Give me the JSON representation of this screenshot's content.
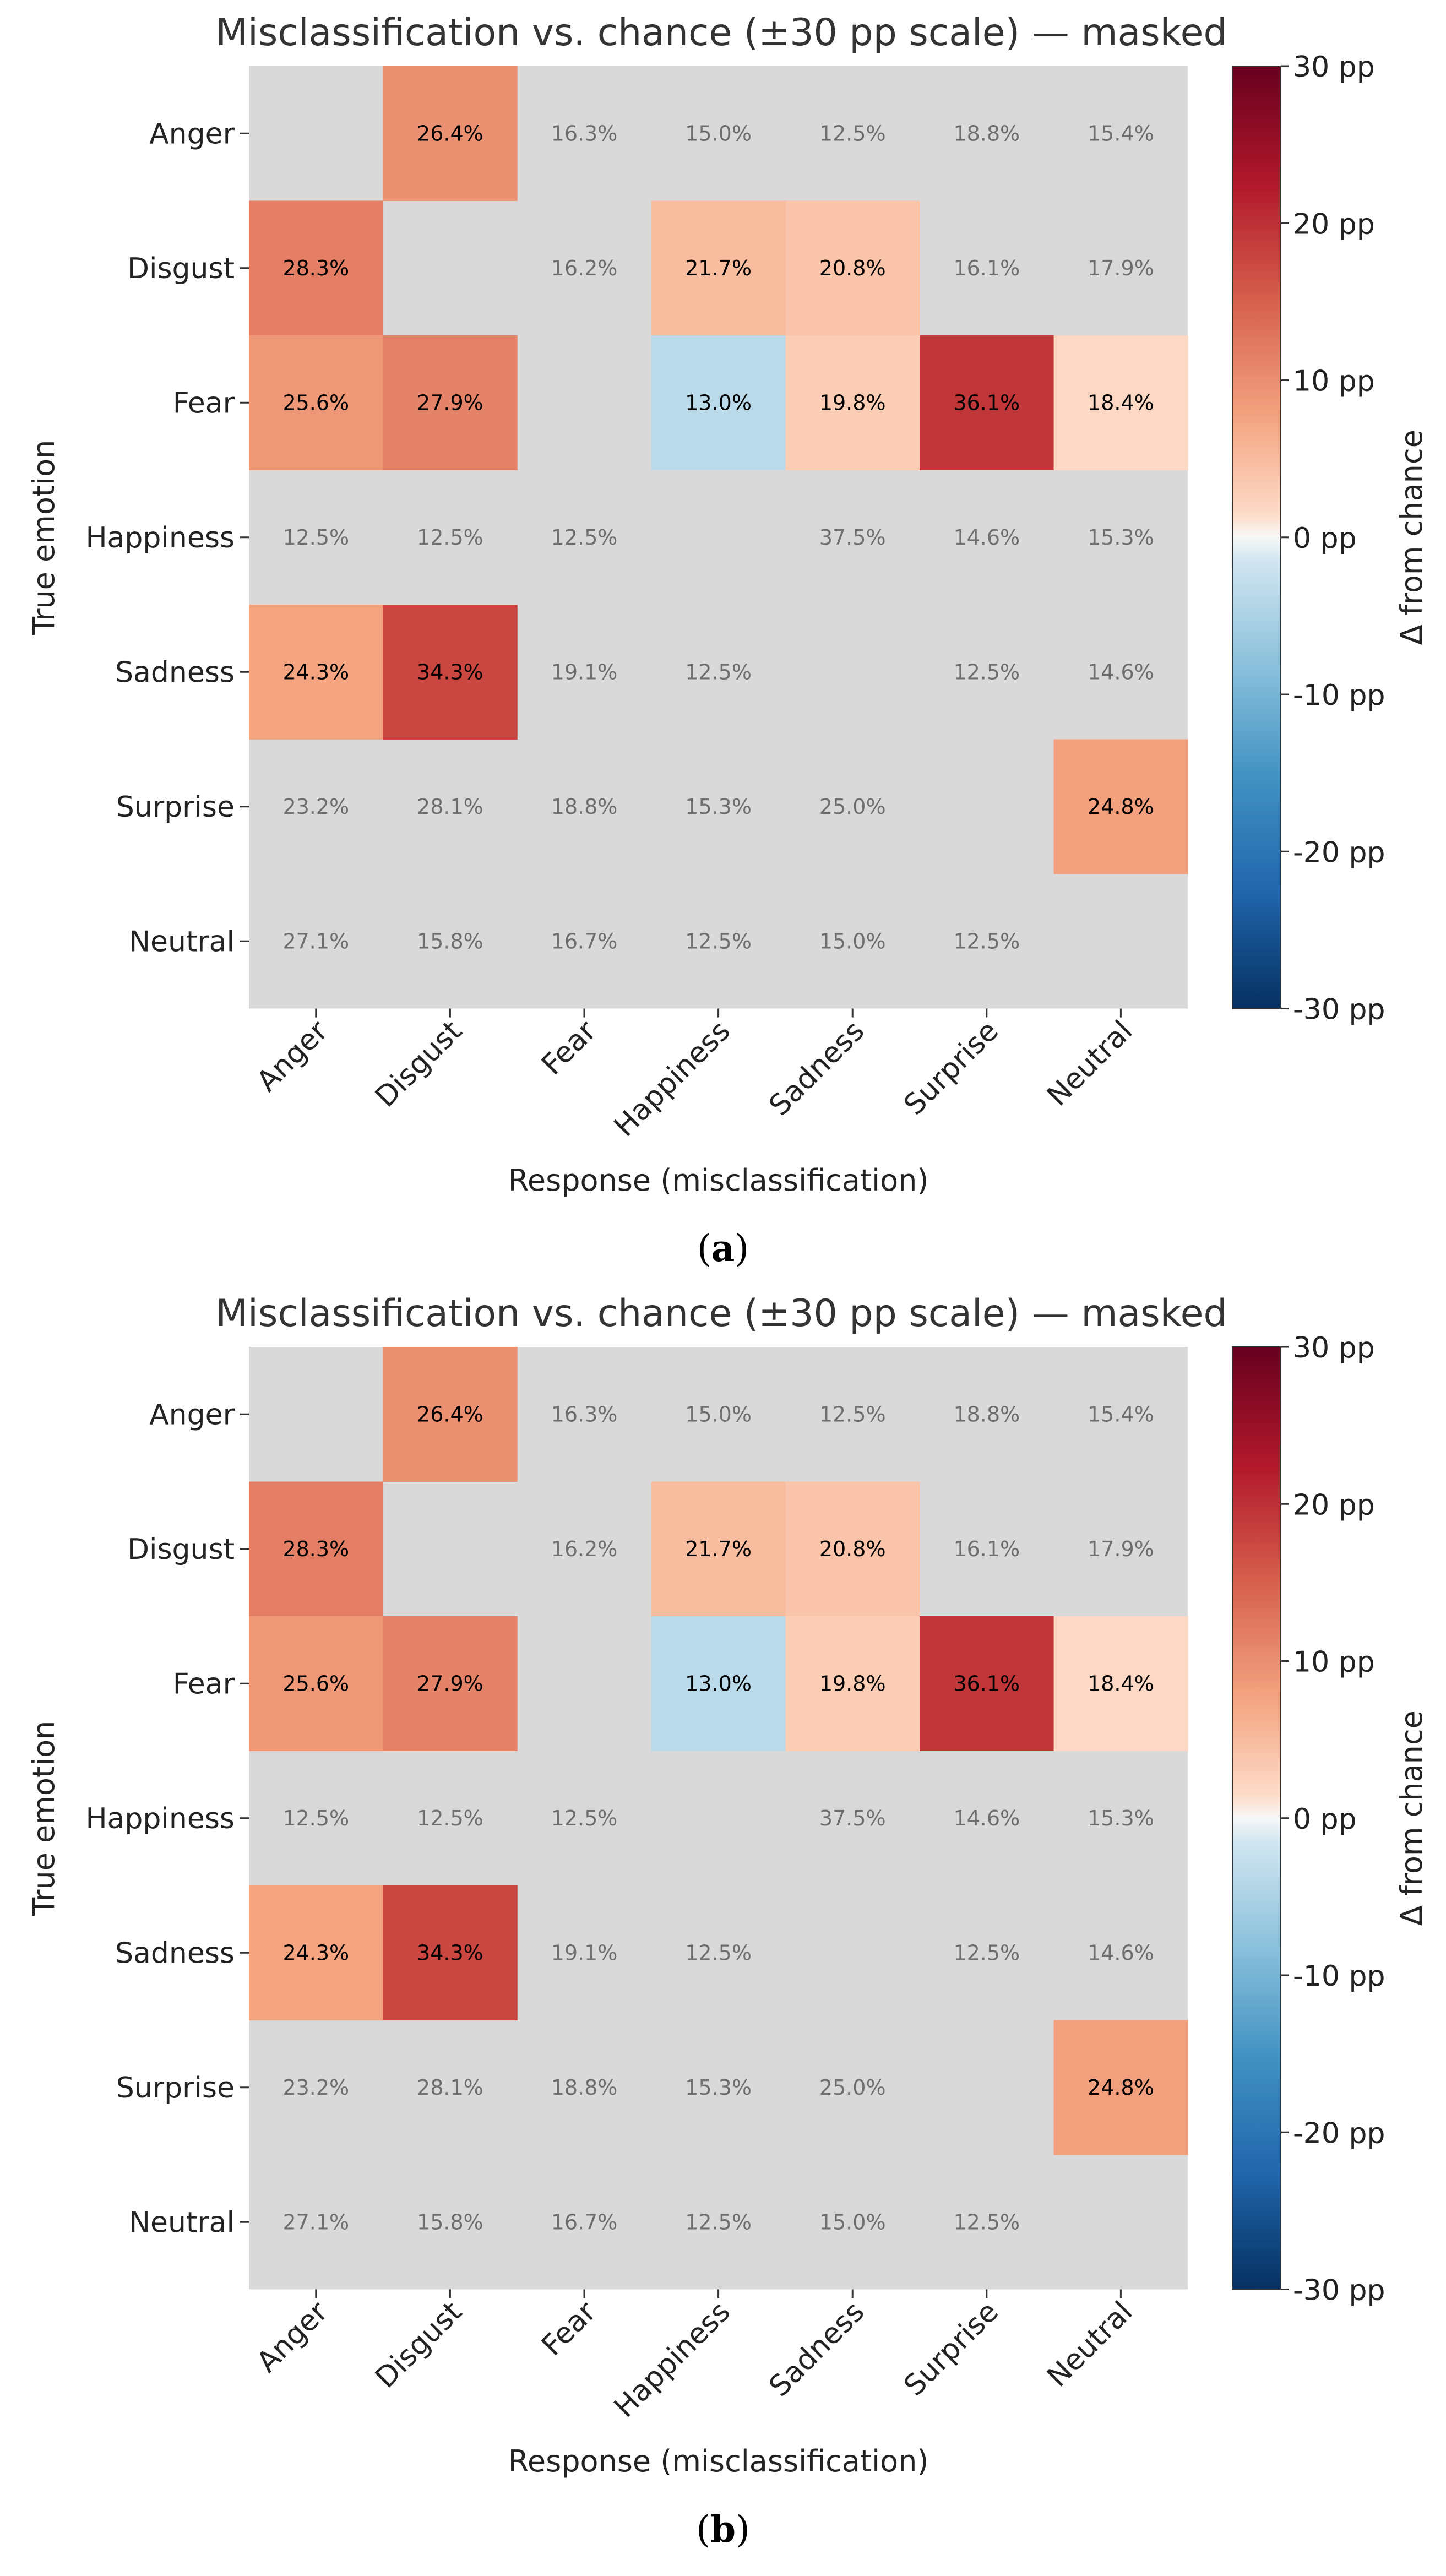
{
  "chart_data": [
    {
      "type": "heatmap",
      "panel_label": "a",
      "title": "Misclassification vs. chance (±30 pp scale) — masked",
      "xlabel": "Response (misclassification)",
      "ylabel": "True emotion",
      "rows": [
        "Anger",
        "Disgust",
        "Fear",
        "Happiness",
        "Sadness",
        "Surprise",
        "Neutral"
      ],
      "columns": [
        "Anger",
        "Disgust",
        "Fear",
        "Happiness",
        "Sadness",
        "Surprise",
        "Neutral"
      ],
      "values": [
        [
          null,
          26.4,
          16.3,
          15.0,
          12.5,
          18.8,
          15.4
        ],
        [
          28.3,
          null,
          16.2,
          21.7,
          20.8,
          16.1,
          17.9
        ],
        [
          25.6,
          27.9,
          null,
          13.0,
          19.8,
          36.1,
          18.4
        ],
        [
          12.5,
          12.5,
          12.5,
          null,
          37.5,
          14.6,
          15.3
        ],
        [
          24.3,
          34.3,
          19.1,
          12.5,
          null,
          12.5,
          14.6
        ],
        [
          23.2,
          28.1,
          18.8,
          15.3,
          25.0,
          null,
          24.8
        ],
        [
          27.1,
          15.8,
          16.7,
          12.5,
          15.0,
          12.5,
          null
        ]
      ],
      "cell_labels": [
        [
          "",
          "26.4%",
          "16.3%",
          "15.0%",
          "12.5%",
          "18.8%",
          "15.4%"
        ],
        [
          "28.3%",
          "",
          "16.2%",
          "21.7%",
          "20.8%",
          "16.1%",
          "17.9%"
        ],
        [
          "25.6%",
          "27.9%",
          "",
          "13.0%",
          "19.8%",
          "36.1%",
          "18.4%"
        ],
        [
          "12.5%",
          "12.5%",
          "12.5%",
          "",
          "37.5%",
          "14.6%",
          "15.3%"
        ],
        [
          "24.3%",
          "34.3%",
          "19.1%",
          "12.5%",
          "",
          "12.5%",
          "14.6%"
        ],
        [
          "23.2%",
          "28.1%",
          "18.8%",
          "15.3%",
          "25.0%",
          "",
          "24.8%"
        ],
        [
          "27.1%",
          "15.8%",
          "16.7%",
          "12.5%",
          "15.0%",
          "12.5%",
          ""
        ]
      ],
      "delta_from_chance_pp": [
        [
          null,
          9.7,
          null,
          null,
          null,
          null,
          null
        ],
        [
          11.6,
          null,
          null,
          5.0,
          4.1,
          null,
          null
        ],
        [
          8.9,
          11.2,
          null,
          -3.7,
          3.1,
          19.4,
          1.7
        ],
        [
          null,
          null,
          null,
          null,
          null,
          null,
          null
        ],
        [
          7.6,
          17.6,
          null,
          null,
          null,
          null,
          null
        ],
        [
          null,
          null,
          null,
          null,
          null,
          null,
          8.1
        ],
        [
          null,
          null,
          null,
          null,
          null,
          null,
          null
        ]
      ],
      "colorbar": {
        "label": "Δ from chance",
        "range": [
          -30,
          30
        ],
        "ticks": [
          -30,
          -20,
          -10,
          0,
          10,
          20,
          30
        ],
        "tick_labels": [
          "-30 pp",
          "-20 pp",
          "-10 pp",
          "0 pp",
          "10 pp",
          "20 pp",
          "30 pp"
        ],
        "colormap": "RdBu_r"
      },
      "mask_color": "#d9d9d9"
    },
    {
      "type": "heatmap",
      "panel_label": "b",
      "title": "Misclassification vs. chance (±30 pp scale) — masked",
      "xlabel": "Response (misclassification)",
      "ylabel": "True emotion",
      "rows": [
        "Anger",
        "Disgust",
        "Fear",
        "Happiness",
        "Sadness",
        "Surprise",
        "Neutral"
      ],
      "columns": [
        "Anger",
        "Disgust",
        "Fear",
        "Happiness",
        "Sadness",
        "Surprise",
        "Neutral"
      ],
      "values": [
        [
          null,
          26.4,
          16.3,
          15.0,
          12.5,
          18.8,
          15.4
        ],
        [
          28.3,
          null,
          16.2,
          21.7,
          20.8,
          16.1,
          17.9
        ],
        [
          25.6,
          27.9,
          null,
          13.0,
          19.8,
          36.1,
          18.4
        ],
        [
          12.5,
          12.5,
          12.5,
          null,
          37.5,
          14.6,
          15.3
        ],
        [
          24.3,
          34.3,
          19.1,
          12.5,
          null,
          12.5,
          14.6
        ],
        [
          23.2,
          28.1,
          18.8,
          15.3,
          25.0,
          null,
          24.8
        ],
        [
          27.1,
          15.8,
          16.7,
          12.5,
          15.0,
          12.5,
          null
        ]
      ],
      "cell_labels": [
        [
          "",
          "26.4%",
          "16.3%",
          "15.0%",
          "12.5%",
          "18.8%",
          "15.4%"
        ],
        [
          "28.3%",
          "",
          "16.2%",
          "21.7%",
          "20.8%",
          "16.1%",
          "17.9%"
        ],
        [
          "25.6%",
          "27.9%",
          "",
          "13.0%",
          "19.8%",
          "36.1%",
          "18.4%"
        ],
        [
          "12.5%",
          "12.5%",
          "12.5%",
          "",
          "37.5%",
          "14.6%",
          "15.3%"
        ],
        [
          "24.3%",
          "34.3%",
          "19.1%",
          "12.5%",
          "",
          "12.5%",
          "14.6%"
        ],
        [
          "23.2%",
          "28.1%",
          "18.8%",
          "15.3%",
          "25.0%",
          "",
          "24.8%"
        ],
        [
          "27.1%",
          "15.8%",
          "16.7%",
          "12.5%",
          "15.0%",
          "12.5%",
          ""
        ]
      ],
      "delta_from_chance_pp": [
        [
          null,
          9.7,
          null,
          null,
          null,
          null,
          null
        ],
        [
          11.6,
          null,
          null,
          5.0,
          4.1,
          null,
          null
        ],
        [
          8.9,
          11.2,
          null,
          -3.7,
          3.1,
          19.4,
          1.7
        ],
        [
          null,
          null,
          null,
          null,
          null,
          null,
          null
        ],
        [
          7.6,
          17.6,
          null,
          null,
          null,
          null,
          null
        ],
        [
          null,
          null,
          null,
          null,
          null,
          null,
          8.1
        ],
        [
          null,
          null,
          null,
          null,
          null,
          null,
          null
        ]
      ],
      "colorbar": {
        "label": "Δ from chance",
        "range": [
          -30,
          30
        ],
        "ticks": [
          -30,
          -20,
          -10,
          0,
          10,
          20,
          30
        ],
        "tick_labels": [
          "-30 pp",
          "-20 pp",
          "-10 pp",
          "0 pp",
          "10 pp",
          "20 pp",
          "30 pp"
        ],
        "colormap": "RdBu_r"
      },
      "mask_color": "#d9d9d9"
    }
  ],
  "colors": {
    "mask": "#d9d9d9",
    "masked_text": "#6e6e6e",
    "highlight_text": "#000000",
    "axis_text": "#222222",
    "title_text": "#333333"
  }
}
